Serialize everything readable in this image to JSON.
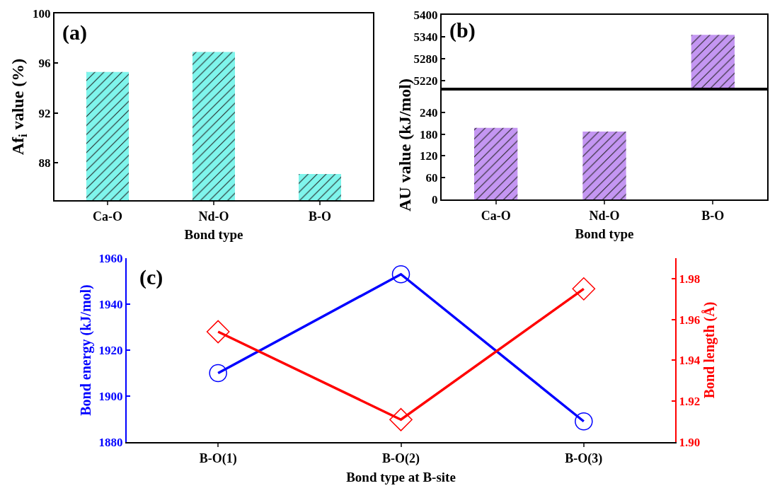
{
  "chart_data": [
    {
      "type": "bar",
      "ylabel": "Af$_{i}$ value (%)",
      "xlabel": "Bond type",
      "categories": [
        "Ca-O",
        "Nd-O",
        "B-O"
      ],
      "values": [
        95.3,
        96.9,
        87.1
      ],
      "color": "#7ff5ec",
      "ylim": [
        85,
        100
      ],
      "yticks": [
        88,
        92,
        96,
        100
      ],
      "grid": false,
      "annotations": [
        "(a)"
      ]
    },
    {
      "type": "bar",
      "categories": [
        null,
        null,
        null
      ],
      "values": [
        null,
        null,
        5345
      ],
      "color": "#c496f2",
      "ylim": [
        5200,
        5400
      ],
      "yticks": [
        5220,
        5280,
        5340,
        5400
      ],
      "grid": false,
      "tick_labels": "y",
      "annotations": [
        "(b)"
      ]
    },
    {
      "type": "bar",
      "ylabel": "AU value (kJ/mol)",
      "xlabel": "Bond type",
      "categories": [
        "Ca-O",
        "Nd-O",
        "B-O"
      ],
      "values": [
        197,
        187,
        null
      ],
      "color": "#c496f2",
      "ylim": [
        0,
        300
      ],
      "yticks": [
        0,
        60,
        120,
        180,
        240
      ],
      "grid": false
    },
    {
      "type": "line",
      "xlabel": "Bond type at B-site",
      "ylabel": "Bond energy (kJ/mol)",
      "y2label": "Bond length (Å)",
      "categories": [
        "B-O(1)",
        "B-O(2)",
        "B-O(3)"
      ],
      "series": [
        {
          "color": "#0000ff",
          "values": [
            1910,
            1953,
            1889
          ],
          "marker": "circle"
        },
        {
          "color": "#ff0000",
          "values": [
            1.954,
            1.911,
            1.975
          ],
          "marker": "diamond",
          "axis": "y2"
        }
      ],
      "ylim": [
        1880,
        1960
      ],
      "yticks": [
        1880,
        1900,
        1920,
        1940,
        1960
      ],
      "y2lim": [
        1.9,
        1.99
      ],
      "y2ticks": [
        {
          "value": 1.9,
          "label": "1.90"
        },
        1.92,
        1.94,
        1.96,
        1.98
      ],
      "grid": false,
      "line_style": "solid",
      "annotations": [
        "(c)"
      ]
    }
  ]
}
